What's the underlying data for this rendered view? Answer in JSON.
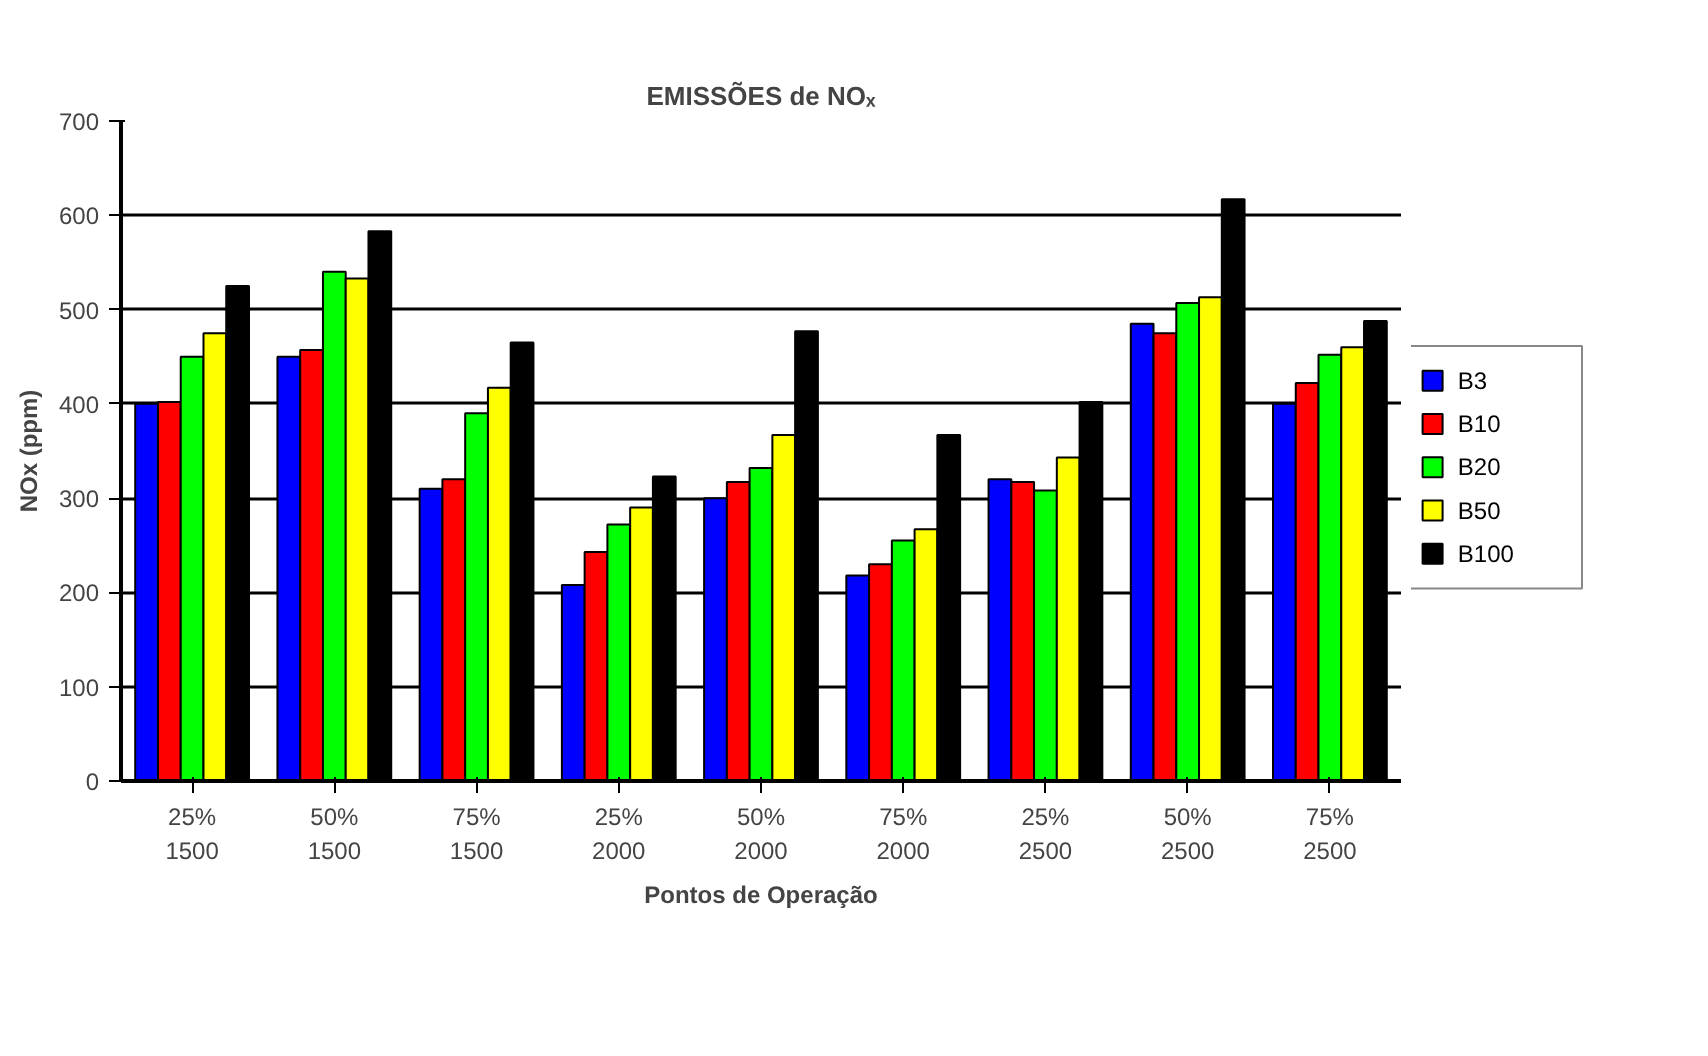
{
  "chart_data": {
    "type": "bar",
    "title": "EMISSÕES de NOₓ",
    "xlabel": "Pontos de Operação",
    "ylabel": "NOx (ppm)",
    "categories": [
      "25%\n1500",
      "50%\n1500",
      "75%\n1500",
      "25%\n2000",
      "50%\n2000",
      "75%\n2000",
      "25%\n2500",
      "50%\n2500",
      "75%\n2500"
    ],
    "series": [
      {
        "name": "B3",
        "color": "#0000ff",
        "values": [
          400,
          450,
          310,
          208,
          300,
          218,
          320,
          485,
          400
        ]
      },
      {
        "name": "B10",
        "color": "#ff0000",
        "values": [
          402,
          457,
          320,
          243,
          317,
          230,
          317,
          475,
          422
        ]
      },
      {
        "name": "B20",
        "color": "#00ff00",
        "values": [
          450,
          540,
          390,
          272,
          332,
          255,
          308,
          507,
          452
        ]
      },
      {
        "name": "B50",
        "color": "#ffff00",
        "values": [
          475,
          533,
          417,
          290,
          367,
          267,
          343,
          513,
          460
        ]
      },
      {
        "name": "B100",
        "color": "#000000",
        "values": [
          525,
          583,
          465,
          323,
          477,
          367,
          402,
          617,
          488
        ]
      }
    ],
    "ylim": [
      0,
      700
    ],
    "yticks": [
      0,
      100,
      200,
      300,
      400,
      500,
      600,
      700
    ],
    "grid": "y",
    "legend": "right"
  }
}
